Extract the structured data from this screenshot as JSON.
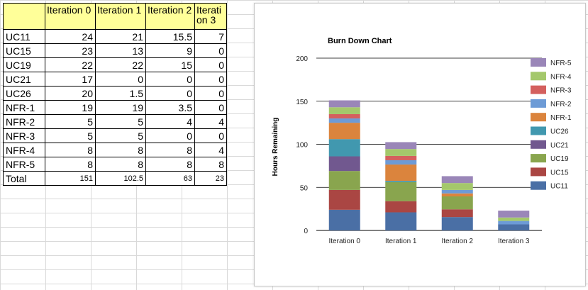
{
  "table": {
    "headers": [
      "Iteration 0",
      "Iteration 1",
      "Iteration 2",
      "Iteration 3"
    ],
    "rows": [
      {
        "name": "UC11",
        "values": [
          "24",
          "21",
          "15.5",
          "7"
        ]
      },
      {
        "name": "UC15",
        "values": [
          "23",
          "13",
          "9",
          "0"
        ]
      },
      {
        "name": "UC19",
        "values": [
          "22",
          "22",
          "15",
          "0"
        ]
      },
      {
        "name": "UC21",
        "values": [
          "17",
          "0",
          "0",
          "0"
        ]
      },
      {
        "name": "UC26",
        "values": [
          "20",
          "1.5",
          "0",
          "0"
        ]
      },
      {
        "name": "NFR-1",
        "values": [
          "19",
          "19",
          "3.5",
          "0"
        ]
      },
      {
        "name": "NFR-2",
        "values": [
          "5",
          "5",
          "4",
          "4"
        ]
      },
      {
        "name": "NFR-3",
        "values": [
          "5",
          "5",
          "0",
          "0"
        ]
      },
      {
        "name": "NFR-4",
        "values": [
          "8",
          "8",
          "8",
          "4"
        ]
      },
      {
        "name": "NFR-5",
        "values": [
          "8",
          "8",
          "8",
          "8"
        ]
      }
    ],
    "total": {
      "name": "Total",
      "values": [
        "151",
        "102.5",
        "63",
        "23"
      ]
    }
  },
  "chart_data": {
    "type": "bar",
    "stacked": true,
    "title": "Burn Down Chart",
    "xlabel": "",
    "ylabel": "Hours Remaining",
    "ylim": [
      0,
      200
    ],
    "yticks": [
      0,
      50,
      100,
      150,
      200
    ],
    "grid": true,
    "legend_position": "right",
    "categories": [
      "Iteration 0",
      "Iteration 1",
      "Iteration 2",
      "Iteration 3"
    ],
    "series": [
      {
        "name": "UC11",
        "color": "#4a6fa5",
        "values": [
          24,
          21,
          15.5,
          7
        ]
      },
      {
        "name": "UC15",
        "color": "#aa4643",
        "values": [
          23,
          13,
          9,
          0
        ]
      },
      {
        "name": "UC19",
        "color": "#89a54e",
        "values": [
          22,
          22,
          15,
          0
        ]
      },
      {
        "name": "UC21",
        "color": "#71588f",
        "values": [
          17,
          0,
          0,
          0
        ]
      },
      {
        "name": "UC26",
        "color": "#4198af",
        "values": [
          20,
          1.5,
          0,
          0
        ]
      },
      {
        "name": "NFR-1",
        "color": "#db843d",
        "values": [
          19,
          19,
          3.5,
          0
        ]
      },
      {
        "name": "NFR-2",
        "color": "#6d9bd6",
        "values": [
          5,
          5,
          4,
          4
        ]
      },
      {
        "name": "NFR-3",
        "color": "#d4605e",
        "values": [
          5,
          5,
          0,
          0
        ]
      },
      {
        "name": "NFR-4",
        "color": "#a4c86b",
        "values": [
          8,
          8,
          8,
          4
        ]
      },
      {
        "name": "NFR-5",
        "color": "#9a86b8",
        "values": [
          8,
          8,
          8,
          8
        ]
      }
    ]
  }
}
